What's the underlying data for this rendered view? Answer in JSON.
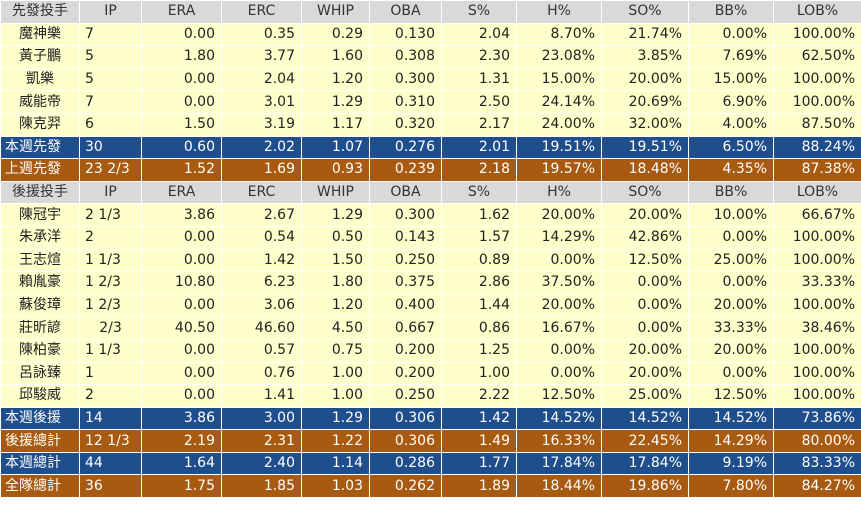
{
  "headers": {
    "starters": [
      "先發投手",
      "IP",
      "ERA",
      "ERC",
      "WHIP",
      "OBA",
      "S%",
      "H%",
      "SO%",
      "BB%",
      "LOB%"
    ],
    "relievers": [
      "後援投手",
      "IP",
      "ERA",
      "ERC",
      "WHIP",
      "OBA",
      "S%",
      "H%",
      "SO%",
      "BB%",
      "LOB%"
    ]
  },
  "starters": [
    [
      "魔神樂",
      "7",
      "0.00",
      "0.35",
      "0.29",
      "0.130",
      "2.04",
      "8.70%",
      "21.74%",
      "0.00%",
      "100.00%"
    ],
    [
      "黃子鵬",
      "5",
      "1.80",
      "3.77",
      "1.60",
      "0.308",
      "2.30",
      "23.08%",
      "3.85%",
      "7.69%",
      "62.50%"
    ],
    [
      "凱樂",
      "5",
      "0.00",
      "2.04",
      "1.20",
      "0.300",
      "1.31",
      "15.00%",
      "20.00%",
      "15.00%",
      "100.00%"
    ],
    [
      "威能帝",
      "7",
      "0.00",
      "3.01",
      "1.29",
      "0.310",
      "2.50",
      "24.14%",
      "20.69%",
      "6.90%",
      "100.00%"
    ],
    [
      "陳克羿",
      "6",
      "1.50",
      "3.19",
      "1.17",
      "0.320",
      "2.17",
      "24.00%",
      "32.00%",
      "4.00%",
      "87.50%"
    ]
  ],
  "starters_week": [
    "本週先發",
    "30",
    "0.60",
    "2.02",
    "1.07",
    "0.276",
    "2.01",
    "19.51%",
    "19.51%",
    "6.50%",
    "88.24%"
  ],
  "starters_lastweek": [
    "上週先發",
    "23 2/3",
    "1.52",
    "1.69",
    "0.93",
    "0.239",
    "2.18",
    "19.57%",
    "18.48%",
    "4.35%",
    "87.38%"
  ],
  "relievers": [
    [
      "陳冠宇",
      "2 1/3",
      "3.86",
      "2.67",
      "1.29",
      "0.300",
      "1.62",
      "20.00%",
      "20.00%",
      "10.00%",
      "66.67%"
    ],
    [
      "朱承洋",
      "2",
      "0.00",
      "0.54",
      "0.50",
      "0.143",
      "1.57",
      "14.29%",
      "42.86%",
      "0.00%",
      "100.00%"
    ],
    [
      "王志煊",
      "1 1/3",
      "0.00",
      "1.42",
      "1.50",
      "0.250",
      "0.89",
      "0.00%",
      "12.50%",
      "25.00%",
      "100.00%"
    ],
    [
      "賴胤豪",
      "1 2/3",
      "10.80",
      "6.23",
      "1.80",
      "0.375",
      "2.86",
      "37.50%",
      "0.00%",
      "0.00%",
      "33.33%"
    ],
    [
      "蘇俊璋",
      "1 2/3",
      "0.00",
      "3.06",
      "1.20",
      "0.400",
      "1.44",
      "20.00%",
      "0.00%",
      "20.00%",
      "100.00%"
    ],
    [
      "莊昕諺",
      "2/3",
      "40.50",
      "46.60",
      "4.50",
      "0.667",
      "0.86",
      "16.67%",
      "0.00%",
      "33.33%",
      "38.46%"
    ],
    [
      "陳柏豪",
      "1 1/3",
      "0.00",
      "0.57",
      "0.75",
      "0.200",
      "1.25",
      "0.00%",
      "20.00%",
      "20.00%",
      "100.00%"
    ],
    [
      "呂詠臻",
      "1",
      "0.00",
      "0.76",
      "1.00",
      "0.200",
      "1.00",
      "0.00%",
      "20.00%",
      "0.00%",
      "100.00%"
    ],
    [
      "邱駿威",
      "2",
      "0.00",
      "1.41",
      "1.00",
      "0.250",
      "2.22",
      "12.50%",
      "25.00%",
      "12.50%",
      "100.00%"
    ]
  ],
  "relievers_week": [
    "本週後援",
    "14",
    "3.86",
    "3.00",
    "1.29",
    "0.306",
    "1.42",
    "14.52%",
    "14.52%",
    "14.52%",
    "73.86%"
  ],
  "relievers_total": [
    "後援總計",
    "12 1/3",
    "2.19",
    "2.31",
    "1.22",
    "0.306",
    "1.49",
    "16.33%",
    "22.45%",
    "14.29%",
    "80.00%"
  ],
  "week_total": [
    "本週總計",
    "44",
    "1.64",
    "2.40",
    "1.14",
    "0.286",
    "1.77",
    "17.84%",
    "17.84%",
    "9.19%",
    "83.33%"
  ],
  "team_total": [
    "全隊總計",
    "36",
    "1.75",
    "1.85",
    "1.03",
    "0.262",
    "1.89",
    "18.44%",
    "19.86%",
    "7.80%",
    "84.27%"
  ],
  "colors": {
    "header_bg": "#d9d9d9",
    "row_bg": "#ffffcc",
    "blue_bg": "#1f4e8c",
    "brown_bg": "#a85a10"
  }
}
